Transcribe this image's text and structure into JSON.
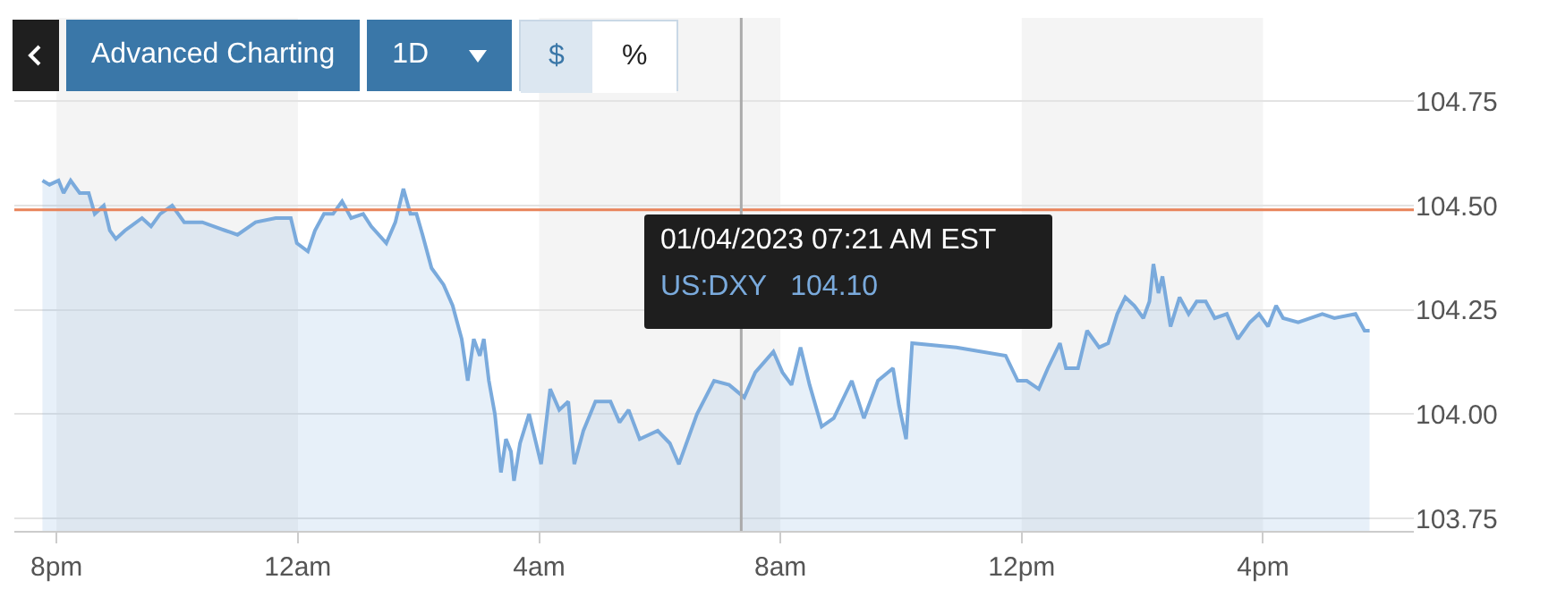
{
  "chart_data": {
    "type": "area",
    "x": [
      "2023-01-03T19:46",
      "2023-01-03T19:53",
      "2023-01-03T20:02",
      "2023-01-03T20:07",
      "2023-01-03T20:14",
      "2023-01-03T20:23",
      "2023-01-03T20:32",
      "2023-01-03T20:38",
      "2023-01-03T20:47",
      "2023-01-03T20:53",
      "2023-01-03T20:59",
      "2023-01-03T21:08",
      "2023-01-03T21:25",
      "2023-01-03T21:34",
      "2023-01-03T21:43",
      "2023-01-03T21:55",
      "2023-01-03T22:07",
      "2023-01-03T22:25",
      "2023-01-03T22:48",
      "2023-01-03T23:00",
      "2023-01-03T23:18",
      "2023-01-03T23:38",
      "2023-01-03T23:53",
      "2023-01-03T23:59",
      "2023-01-04T00:10",
      "2023-01-04T00:17",
      "2023-01-04T00:26",
      "2023-01-04T00:35",
      "2023-01-04T00:44",
      "2023-01-04T00:53",
      "2023-01-04T01:05",
      "2023-01-04T01:13",
      "2023-01-04T01:28",
      "2023-01-04T01:37",
      "2023-01-04T01:45",
      "2023-01-04T01:52",
      "2023-01-04T01:58",
      "2023-01-04T02:04",
      "2023-01-04T02:13",
      "2023-01-04T02:25",
      "2023-01-04T02:34",
      "2023-01-04T02:43",
      "2023-01-04T02:49",
      "2023-01-04T02:55",
      "2023-01-04T03:01",
      "2023-01-04T03:05",
      "2023-01-04T03:10",
      "2023-01-04T03:16",
      "2023-01-04T03:22",
      "2023-01-04T03:27",
      "2023-01-04T03:32",
      "2023-01-04T03:35",
      "2023-01-04T03:41",
      "2023-01-04T03:50",
      "2023-01-04T04:02",
      "2023-01-04T04:11",
      "2023-01-04T04:20",
      "2023-01-04T04:29",
      "2023-01-04T04:35",
      "2023-01-04T04:44",
      "2023-01-04T04:56",
      "2023-01-04T05:11",
      "2023-01-04T05:20",
      "2023-01-04T05:29",
      "2023-01-04T05:40",
      "2023-01-04T05:58",
      "2023-01-04T06:10",
      "2023-01-04T06:19",
      "2023-01-04T06:37",
      "2023-01-04T06:54",
      "2023-01-04T07:09",
      "2023-01-04T07:24",
      "2023-01-04T07:35",
      "2023-01-04T07:53",
      "2023-01-04T08:02",
      "2023-01-04T08:11",
      "2023-01-04T08:20",
      "2023-01-04T08:29",
      "2023-01-04T08:41",
      "2023-01-04T08:53",
      "2023-01-04T09:11",
      "2023-01-04T09:23",
      "2023-01-04T09:37",
      "2023-01-04T09:52",
      "2023-01-04T09:58",
      "2023-01-04T10:05",
      "2023-01-04T10:11",
      "2023-01-04T10:55",
      "2023-01-04T11:44",
      "2023-01-04T11:56",
      "2023-01-04T12:05",
      "2023-01-04T12:17",
      "2023-01-04T12:26",
      "2023-01-04T12:38",
      "2023-01-04T12:44",
      "2023-01-04T12:56",
      "2023-01-04T13:05",
      "2023-01-04T13:17",
      "2023-01-04T13:26",
      "2023-01-04T13:35",
      "2023-01-04T13:43",
      "2023-01-04T13:52",
      "2023-01-04T14:01",
      "2023-01-04T14:07",
      "2023-01-04T14:11",
      "2023-01-04T14:16",
      "2023-01-04T14:20",
      "2023-01-04T14:28",
      "2023-01-04T14:37",
      "2023-01-04T14:46",
      "2023-01-04T14:54",
      "2023-01-04T15:03",
      "2023-01-04T15:12",
      "2023-01-04T15:24",
      "2023-01-04T15:35",
      "2023-01-04T15:47",
      "2023-01-04T15:56",
      "2023-01-04T16:05",
      "2023-01-04T16:13",
      "2023-01-04T16:20",
      "2023-01-04T16:35",
      "2023-01-04T16:59",
      "2023-01-04T17:11",
      "2023-01-04T17:32",
      "2023-01-04T17:41",
      "2023-01-04T17:46"
    ],
    "series": [
      {
        "color": "#7aaadc",
        "values": [
          104.56,
          104.55,
          104.56,
          104.53,
          104.56,
          104.53,
          104.53,
          104.48,
          104.5,
          104.44,
          104.42,
          104.44,
          104.47,
          104.45,
          104.48,
          104.5,
          104.46,
          104.46,
          104.44,
          104.43,
          104.46,
          104.47,
          104.47,
          104.41,
          104.39,
          104.44,
          104.48,
          104.48,
          104.51,
          104.47,
          104.48,
          104.45,
          104.41,
          104.46,
          104.54,
          104.48,
          104.48,
          104.43,
          104.35,
          104.31,
          104.26,
          104.18,
          104.08,
          104.18,
          104.14,
          104.18,
          104.08,
          104.0,
          103.86,
          103.94,
          103.91,
          103.84,
          103.93,
          104.0,
          103.88,
          104.06,
          104.01,
          104.03,
          103.88,
          103.96,
          104.03,
          104.03,
          103.98,
          104.01,
          103.94,
          103.96,
          103.93,
          103.88,
          104.0,
          104.08,
          104.07,
          104.04,
          104.1,
          104.15,
          104.1,
          104.07,
          104.16,
          104.07,
          103.97,
          103.99,
          104.08,
          103.99,
          104.08,
          104.11,
          104.02,
          103.94,
          104.17,
          104.16,
          104.14,
          104.08,
          104.08,
          104.06,
          104.11,
          104.17,
          104.11,
          104.11,
          104.2,
          104.16,
          104.17,
          104.24,
          104.28,
          104.26,
          104.23,
          104.27,
          104.36,
          104.29,
          104.33,
          104.21,
          104.28,
          104.24,
          104.27,
          104.27,
          104.23,
          104.24,
          104.18,
          104.22,
          104.24,
          104.21,
          104.26,
          104.23,
          104.22,
          104.24,
          104.23,
          104.24,
          104.2,
          104.2
        ]
      }
    ],
    "xlim": [
      "2023-01-03T19:18",
      "2023-01-04T18:30"
    ],
    "xticks": [
      {
        "value": "2023-01-03T20:00",
        "label": "8pm"
      },
      {
        "value": "2023-01-04T00:00",
        "label": "12am"
      },
      {
        "value": "2023-01-04T04:00",
        "label": "4am"
      },
      {
        "value": "2023-01-04T08:00",
        "label": "8am"
      },
      {
        "value": "2023-01-04T12:00",
        "label": "12pm"
      },
      {
        "value": "2023-01-04T16:00",
        "label": "4pm"
      }
    ],
    "ylim": [
      103.72,
      104.95
    ],
    "yticks": [
      {
        "value": 103.75,
        "label": "103.75"
      },
      {
        "value": 104,
        "label": "104.00"
      },
      {
        "value": 104.25,
        "label": "104.25"
      },
      {
        "value": 104.5,
        "label": "104.50"
      },
      {
        "value": 104.75,
        "label": "104.75"
      }
    ],
    "grid": "y",
    "legend": false,
    "bands": [
      {
        "axis": "x",
        "from": "2023-01-03T20:00",
        "to": "2023-01-04T00:00",
        "color": "#f4f4f4"
      },
      {
        "axis": "x",
        "from": "2023-01-04T04:00",
        "to": "2023-01-04T08:00",
        "color": "#f4f4f4"
      },
      {
        "axis": "x",
        "from": "2023-01-04T12:00",
        "to": "2023-01-04T16:00",
        "color": "#f4f4f4"
      }
    ],
    "ref_lines": [
      {
        "axis": "y",
        "value": 104.49,
        "color": "#e8835a"
      },
      {
        "axis": "x",
        "value": "2023-01-04T07:21",
        "color": "#aaaaaa"
      }
    ],
    "annotations": [
      "Advanced Charting",
      "1D",
      "$",
      "%",
      "01/04/2023 07:21 AM EST",
      "US:DXY   104.10"
    ]
  }
}
